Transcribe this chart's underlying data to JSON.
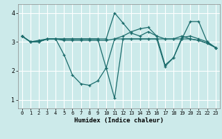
{
  "xlabel": "Humidex (Indice chaleur)",
  "bg_color": "#cceaea",
  "grid_color": "#ffffff",
  "line_color": "#1a6b6b",
  "xlim": [
    -0.5,
    23.5
  ],
  "ylim": [
    0.7,
    4.3
  ],
  "xticks": [
    0,
    1,
    2,
    3,
    4,
    5,
    6,
    7,
    8,
    9,
    10,
    11,
    12,
    13,
    14,
    15,
    16,
    17,
    18,
    19,
    20,
    21,
    22,
    23
  ],
  "yticks": [
    1,
    2,
    3,
    4
  ],
  "series": [
    [
      3.2,
      3.0,
      3.0,
      3.1,
      3.1,
      2.55,
      1.85,
      1.55,
      1.5,
      1.65,
      2.1,
      1.05,
      3.1,
      3.1,
      3.1,
      3.1,
      3.1,
      3.1,
      3.1,
      3.1,
      3.1,
      3.05,
      2.95,
      2.8
    ],
    [
      3.2,
      3.0,
      3.05,
      3.1,
      3.1,
      3.05,
      3.05,
      3.05,
      3.05,
      3.05,
      3.05,
      3.1,
      3.2,
      3.35,
      3.45,
      3.5,
      3.2,
      3.1,
      3.1,
      3.2,
      3.1,
      3.05,
      2.95,
      2.8
    ],
    [
      3.2,
      3.0,
      3.0,
      3.1,
      3.1,
      3.1,
      3.1,
      3.1,
      3.1,
      3.1,
      3.1,
      4.0,
      3.65,
      3.3,
      3.2,
      3.35,
      3.2,
      2.2,
      2.45,
      3.1,
      3.7,
      3.7,
      3.0,
      2.8
    ],
    [
      3.2,
      3.0,
      3.0,
      3.1,
      3.1,
      3.1,
      3.1,
      3.1,
      3.1,
      3.1,
      2.1,
      3.1,
      3.1,
      3.1,
      3.1,
      3.1,
      3.1,
      2.15,
      2.45,
      3.15,
      3.2,
      3.1,
      3.0,
      2.8
    ]
  ]
}
